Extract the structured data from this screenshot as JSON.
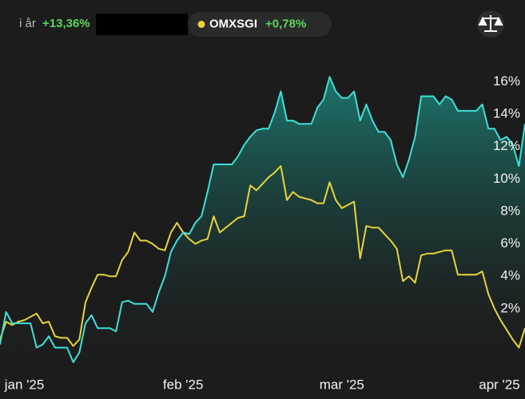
{
  "chart_data": {
    "type": "line",
    "period_label": "i år",
    "change": "+13,36%",
    "x": [
      0,
      1,
      2,
      3,
      4,
      5,
      6,
      7,
      8,
      9,
      10,
      11,
      12,
      13,
      14,
      15,
      16,
      17,
      18,
      19,
      20,
      21,
      22,
      23,
      24,
      25,
      26,
      27,
      28,
      29,
      30,
      31,
      32,
      33,
      34,
      35,
      36,
      37,
      38,
      39,
      40,
      41,
      42,
      43,
      44,
      45,
      46,
      47,
      48,
      49,
      50,
      51,
      52,
      53,
      54,
      55,
      56,
      57,
      58,
      59,
      60,
      61,
      62,
      63,
      64,
      65,
      66,
      67,
      68,
      69,
      70,
      71,
      72,
      73,
      74,
      75,
      76,
      77,
      78,
      79,
      80,
      81,
      82,
      83,
      84,
      85,
      86
    ],
    "series": [
      {
        "color": "#3de0d8",
        "area": true,
        "values": [
          -0.2,
          1.8,
          1.1,
          1.1,
          1.1,
          1.1,
          -0.4,
          -0.2,
          0.3,
          -0.4,
          -0.4,
          -0.4,
          -1.3,
          -0.7,
          1.1,
          1.6,
          0.8,
          0.8,
          0.8,
          0.6,
          2.4,
          2.5,
          2.3,
          2.3,
          2.3,
          1.8,
          3.0,
          4.0,
          5.5,
          6.2,
          6.7,
          6.6,
          7.3,
          7.7,
          9.2,
          10.9,
          10.9,
          10.9,
          10.9,
          11.4,
          12.1,
          12.6,
          13.0,
          13.1,
          13.1,
          14.1,
          15.4,
          13.6,
          13.6,
          13.4,
          13.4,
          13.4,
          14.4,
          14.9,
          16.3,
          15.4,
          15.0,
          15.0,
          15.4,
          13.6,
          14.6,
          13.6,
          12.9,
          12.9,
          12.4,
          10.9,
          10.1,
          11.2,
          12.6,
          15.1,
          15.1,
          15.1,
          14.6,
          15.1,
          14.9,
          14.2,
          14.2,
          14.2,
          14.2,
          14.6,
          13.1,
          13.1,
          12.4,
          12.6,
          12.1,
          10.8,
          13.4
        ]
      },
      {
        "name": "OMXSGI",
        "change": "+0,78%",
        "color": "#e8d43a",
        "values": [
          0.1,
          1.2,
          1.0,
          1.2,
          1.3,
          1.5,
          1.7,
          1.1,
          1.2,
          0.3,
          0.2,
          0.2,
          -0.3,
          0.1,
          2.4,
          3.3,
          4.1,
          4.1,
          4.0,
          4.0,
          5.0,
          5.5,
          6.7,
          6.2,
          6.2,
          6.0,
          5.7,
          5.6,
          6.7,
          7.3,
          6.7,
          6.3,
          6.0,
          6.2,
          6.3,
          7.7,
          6.7,
          7.0,
          7.3,
          7.6,
          7.7,
          9.6,
          9.3,
          9.7,
          10.1,
          10.4,
          10.8,
          8.7,
          9.2,
          8.9,
          8.8,
          8.7,
          8.5,
          8.5,
          9.8,
          8.7,
          8.2,
          8.4,
          8.6,
          5.1,
          7.1,
          7.0,
          7.0,
          6.6,
          6.2,
          5.7,
          3.7,
          4.0,
          3.6,
          5.3,
          5.4,
          5.4,
          5.5,
          5.6,
          5.6,
          4.1,
          4.1,
          4.1,
          4.1,
          4.3,
          2.9,
          2.0,
          1.3,
          0.7,
          0.1,
          -0.4,
          0.8
        ]
      }
    ],
    "xlim": [
      0,
      86
    ],
    "xticks": [
      {
        "value": 4,
        "label": "jan '25"
      },
      {
        "value": 30,
        "label": "feb '25"
      },
      {
        "value": 56,
        "label": "mar '25"
      },
      {
        "value": 82,
        "label": "apr '25"
      }
    ],
    "ylim": [
      -1.6,
      17.1
    ],
    "yticks": [
      {
        "value": 2,
        "label": "2%"
      },
      {
        "value": 4,
        "label": "4%"
      },
      {
        "value": 6,
        "label": "6%"
      },
      {
        "value": 8,
        "label": "8%"
      },
      {
        "value": 10,
        "label": "10%"
      },
      {
        "value": 12,
        "label": "12%"
      },
      {
        "value": 14,
        "label": "14%"
      },
      {
        "value": 16,
        "label": "16%"
      }
    ],
    "grid": false
  }
}
